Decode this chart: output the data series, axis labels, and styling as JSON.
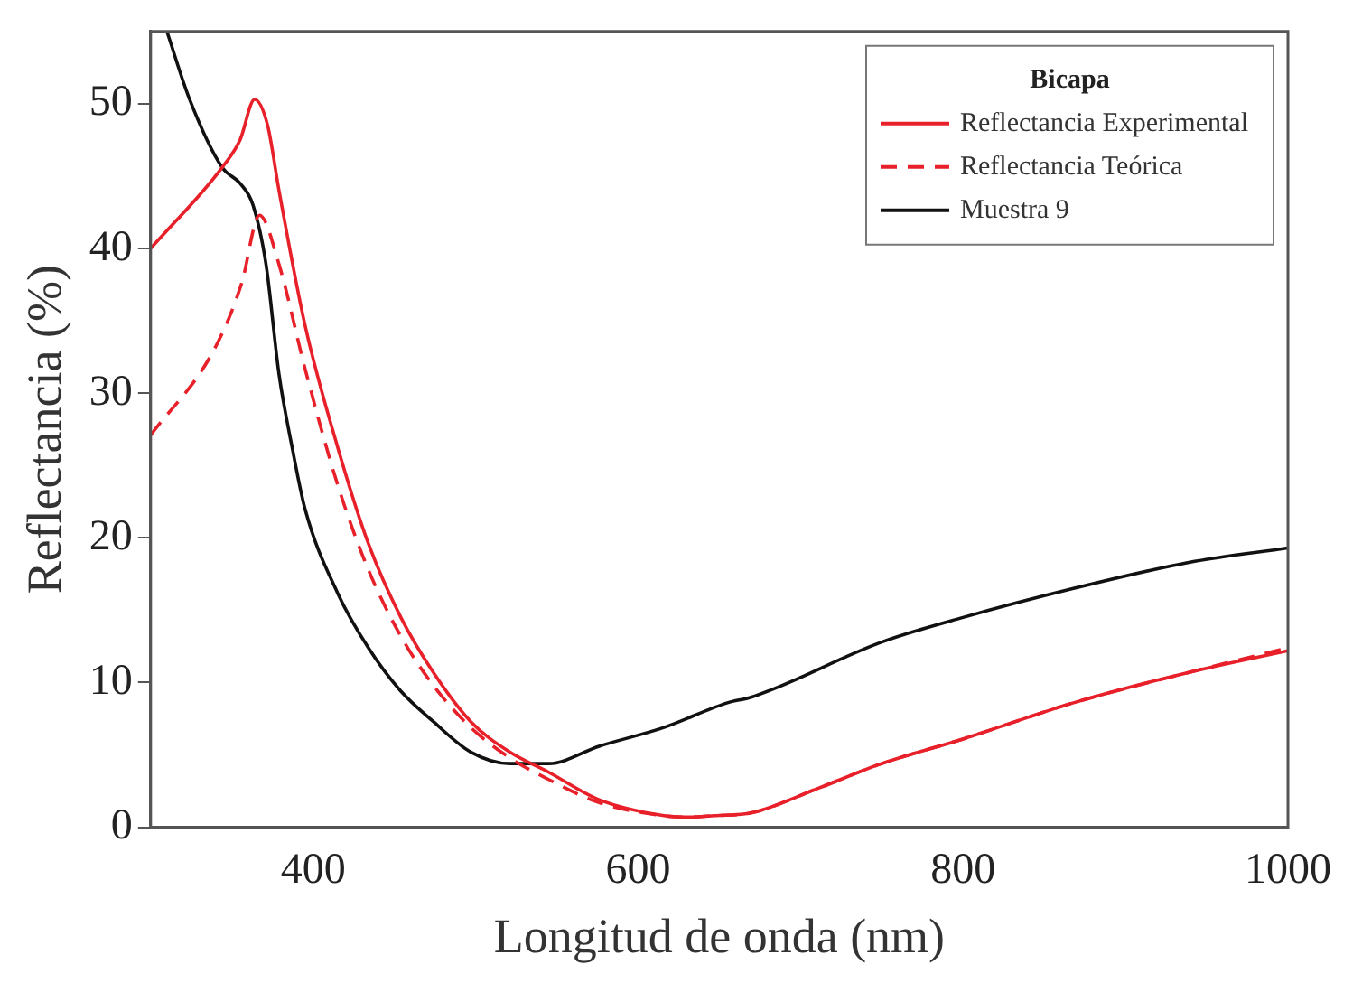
{
  "chart_data": {
    "type": "line",
    "xlabel": "Longitud de onda (nm)",
    "ylabel": "Reflectancia (%)",
    "legend_title": "Bicapa",
    "legend": "top right",
    "grid": false,
    "marker": "none",
    "xlim": [
      300,
      1000
    ],
    "xticks": [
      400,
      600,
      800,
      1000
    ],
    "ylim": [
      0,
      55
    ],
    "yticks": [
      0,
      10,
      20,
      30,
      40,
      50
    ],
    "series": [
      {
        "name": "Reflectancia Experimental",
        "color": "#e8202a",
        "line_style": "solid",
        "x": [
          300,
          344,
          355,
          364,
          372,
          379,
          395,
          415,
          434,
          454,
          474,
          497,
          521,
          545,
          576,
          616,
          631,
          647,
          670,
          711,
          750,
          800,
          868,
          939,
          1000
        ],
        "values": [
          40,
          45.6,
          47.5,
          50.3,
          48.5,
          44,
          34.7,
          26.3,
          19.6,
          14.5,
          10.7,
          7.3,
          5.2,
          3.8,
          1.9,
          0.8,
          0.7,
          0.8,
          1.0,
          2.7,
          4.4,
          6.1,
          8.6,
          10.7,
          12.2
        ]
      },
      {
        "name": "Reflectancia Teórica",
        "color": "#e8202a",
        "line_style": "dashed",
        "x": [
          300,
          339,
          356,
          367,
          379,
          395,
          415,
          434,
          454,
          474,
          497,
          521,
          545,
          576,
          616,
          631,
          647,
          670,
          711,
          750,
          800,
          868,
          939,
          1000
        ],
        "values": [
          27.1,
          33,
          37.6,
          42.3,
          38.9,
          31.7,
          23.7,
          17.8,
          13.2,
          9.8,
          6.9,
          4.8,
          3.3,
          1.7,
          0.8,
          0.7,
          0.8,
          1.0,
          2.7,
          4.4,
          6.1,
          8.6,
          10.7,
          12.4
        ]
      },
      {
        "name": "Muestra 9",
        "color": "#111111",
        "line_style": "solid",
        "x": [
          310,
          324,
          344,
          355,
          363,
          371,
          379,
          387,
          395,
          415,
          434,
          454,
          474,
          497,
          521,
          545,
          576,
          616,
          655,
          670,
          750,
          800,
          868,
          939,
          1000
        ],
        "values": [
          55,
          50.3,
          45.6,
          44.5,
          43,
          38.9,
          31.3,
          26.3,
          22,
          16.2,
          12.4,
          9.4,
          7.3,
          5.2,
          4.4,
          4.4,
          5.6,
          6.9,
          8.6,
          9.0,
          12.8,
          14.5,
          16.5,
          18.3,
          19.3
        ]
      }
    ]
  }
}
